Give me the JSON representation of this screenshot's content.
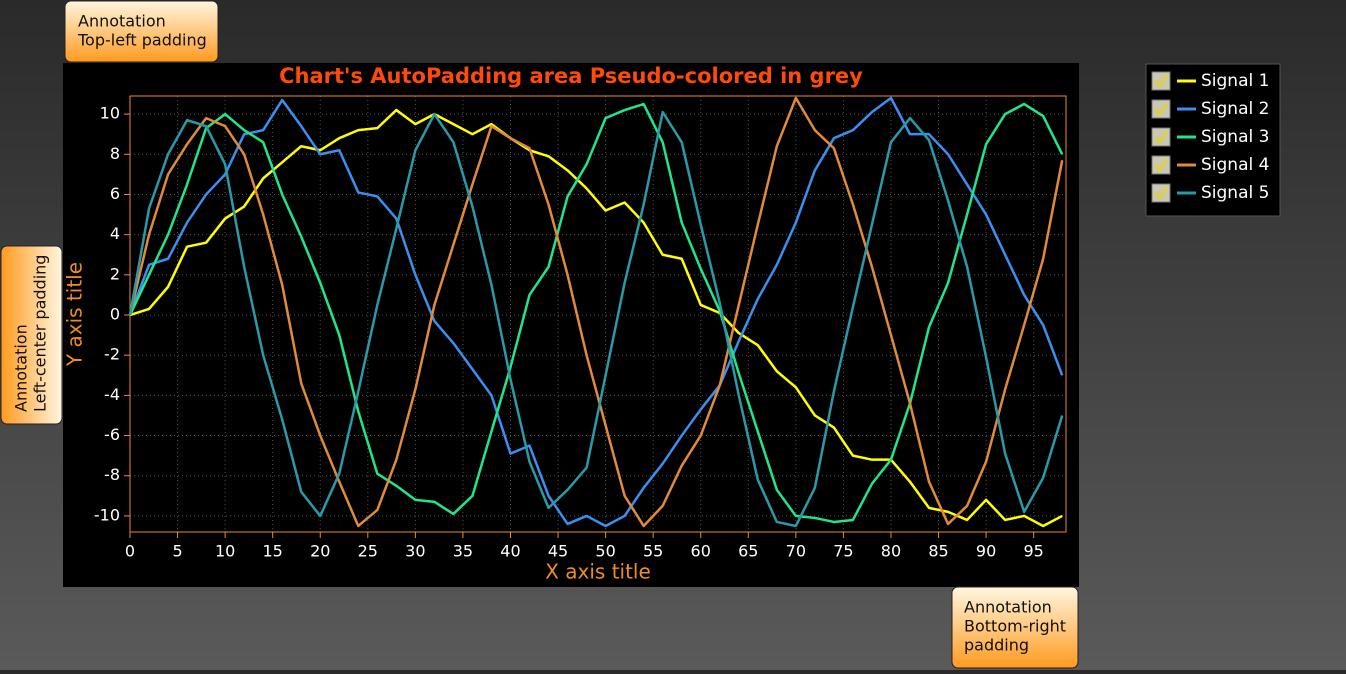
{
  "chart_data": {
    "type": "line",
    "title": "Chart's AutoPadding area Pseudo-colored in grey",
    "x_label": "X axis title",
    "y_label": "Y axis title",
    "x": [
      0,
      2,
      4,
      6,
      8,
      10,
      12,
      14,
      16,
      18,
      20,
      22,
      24,
      26,
      28,
      30,
      32,
      34,
      36,
      38,
      40,
      42,
      44,
      46,
      48,
      50,
      52,
      54,
      56,
      58,
      60,
      62,
      64,
      66,
      68,
      70,
      72,
      74,
      76,
      78,
      80,
      82,
      84,
      86,
      88,
      90,
      92,
      94,
      96,
      98
    ],
    "series": [
      {
        "name": "Signal 1",
        "color": "#ffff00",
        "values": [
          0,
          0.3,
          1.4,
          3.4,
          3.6,
          4.8,
          5.4,
          6.8,
          7.6,
          8.4,
          8.2,
          8.8,
          9.2,
          9.3,
          10.2,
          9.5,
          10,
          9.5,
          9,
          9.5,
          8.8,
          8.2,
          7.9,
          7.2,
          6.3,
          5.2,
          5.6,
          4.6,
          3,
          2.8,
          0.5,
          0.1,
          -0.9,
          -1.5,
          -2.8,
          -3.6,
          -5,
          -5.6,
          -7,
          -7.2,
          -7.2,
          -8.3,
          -9.6,
          -9.8,
          -10.2,
          -9.2,
          -10.2,
          -10,
          -10.5,
          -10
        ]
      },
      {
        "name": "Signal 2",
        "color": "#3b8ff0",
        "values": [
          0,
          2.5,
          2.8,
          4.6,
          6,
          7,
          9,
          9.2,
          10.7,
          9.4,
          8,
          8.2,
          6.1,
          5.9,
          4.8,
          2,
          -0.3,
          -1.4,
          -2.7,
          -4,
          -6.9,
          -6.5,
          -9,
          -10.4,
          -10,
          -10.5,
          -10,
          -8.6,
          -7.4,
          -6,
          -4.7,
          -3.5,
          -1.3,
          0.8,
          2.5,
          4.6,
          7.2,
          8.8,
          9.2,
          10.1,
          10.8,
          9,
          9,
          8,
          6.5,
          5,
          3,
          1,
          -0.5,
          -3
        ]
      },
      {
        "name": "Signal 3",
        "color": "#1ee68c",
        "values": [
          0,
          2,
          4,
          6.5,
          9.3,
          10,
          9.2,
          8.6,
          6,
          3.9,
          1.6,
          -1,
          -4.8,
          -7.9,
          -8.5,
          -9.2,
          -9.3,
          -9.9,
          -9,
          -5.8,
          -2.6,
          1,
          2.4,
          5.9,
          7.5,
          9.8,
          10.2,
          10.5,
          8.6,
          4.6,
          2.3,
          0.2,
          -2.9,
          -5.8,
          -8.7,
          -10,
          -10.1,
          -10.3,
          -10.2,
          -8.4,
          -7.2,
          -4.4,
          -0.6,
          1.6,
          5,
          8.5,
          10,
          10.5,
          9.9,
          8
        ]
      },
      {
        "name": "Signal 4",
        "color": "#e08a3a",
        "values": [
          0,
          4,
          7,
          8.5,
          9.8,
          9.4,
          8,
          5,
          1.5,
          -3.4,
          -6,
          -8.3,
          -10.5,
          -9.7,
          -7.2,
          -3.7,
          0.5,
          3.5,
          6.5,
          9.4,
          8.8,
          8.3,
          5.5,
          2,
          -2,
          -5.5,
          -9,
          -10.5,
          -9.5,
          -7.5,
          -6,
          -3.5,
          0.5,
          4.5,
          8.4,
          10.8,
          9.2,
          8.3,
          5.5,
          2.4,
          -1,
          -4.4,
          -8.3,
          -10.4,
          -9.5,
          -7.3,
          -3.7,
          -0.5,
          2.8,
          7.7
        ]
      },
      {
        "name": "Signal 5",
        "color": "#2a9aa8",
        "values": [
          0,
          5.3,
          8,
          9.7,
          9.4,
          7.5,
          2.4,
          -2,
          -5.2,
          -8.8,
          -10,
          -7.9,
          -3.8,
          0.5,
          4.3,
          8.2,
          10,
          8.6,
          5.4,
          1.5,
          -3.2,
          -7.3,
          -9.6,
          -8.7,
          -7.6,
          -3,
          1.6,
          5.5,
          10.1,
          8.6,
          4.5,
          0.6,
          -4,
          -8.2,
          -10.3,
          -10.5,
          -8.6,
          -3.8,
          0.4,
          4.5,
          8.6,
          9.8,
          8.7,
          5.7,
          2.4,
          -2.1,
          -6.9,
          -9.8,
          -8.1,
          -5
        ]
      }
    ],
    "xlim": [
      0,
      98.4
    ],
    "ylim": [
      -10.8,
      10.9
    ],
    "xticks": [
      0,
      5,
      10,
      15,
      20,
      25,
      30,
      35,
      40,
      45,
      50,
      55,
      60,
      65,
      70,
      75,
      80,
      85,
      90,
      95
    ],
    "yticks": [
      -10,
      -8,
      -6,
      -4,
      -2,
      0,
      2,
      4,
      6,
      8,
      10
    ],
    "grid": true
  },
  "annotations": {
    "top_left": [
      "Annotation",
      "Top-left padding"
    ],
    "left_center": [
      "Annotation",
      "Left-center padding"
    ],
    "bottom_right": [
      "Annotation",
      "Bottom-right",
      "padding"
    ]
  }
}
